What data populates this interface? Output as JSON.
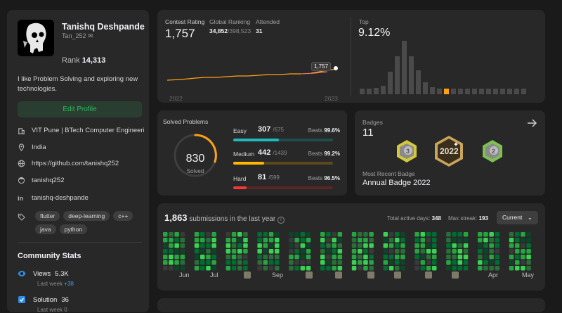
{
  "profile": {
    "name": "Tanishq Deshpande",
    "username": "Tan_252",
    "rank_label": "Rank",
    "rank_value": "14,313",
    "bio": "I like Problem Solving and exploring new technologies.",
    "edit_label": "Edit Profile",
    "college": "VIT Pune | BTech Computer Engineeri...",
    "location": "India",
    "website": "https://github.com/tanishq252",
    "github": "tanishq252",
    "linkedin": "tanishq-deshpande",
    "tags": [
      "flutter",
      "deep-learning",
      "c++",
      "java",
      "python"
    ]
  },
  "community": {
    "title": "Community Stats",
    "views_label": "Views",
    "views_value": "5.3K",
    "views_sub": "Last week",
    "views_delta": "+38",
    "solution_label": "Solution",
    "solution_value": "36",
    "solution_sub": "Last week",
    "solution_delta": "0"
  },
  "contest": {
    "rating_label": "Contest Rating",
    "rating": "1,757",
    "global_label": "Global Ranking",
    "global_rank": "34,852",
    "global_total": "/398,523",
    "attended_label": "Attended",
    "attended": "31",
    "tooltip": "1,757",
    "year_start": "2022",
    "year_end": "2023",
    "top_label": "Top",
    "top_value": "9.12%"
  },
  "solved": {
    "title": "Solved Problems",
    "total": "830",
    "total_label": "Solved",
    "difficulties": [
      {
        "name": "Easy",
        "count": "307",
        "total": "/675",
        "beats_label": "Beats",
        "beats": "99.6%",
        "fraction": 0.455,
        "color": "#1cbaba",
        "track": "#1f4d4a"
      },
      {
        "name": "Medium",
        "count": "442",
        "total": "/1439",
        "beats_label": "Beats",
        "beats": "99.2%",
        "fraction": 0.307,
        "color": "#ffb700",
        "track": "#5c4a1c"
      },
      {
        "name": "Hard",
        "count": "81",
        "total": "/599",
        "beats_label": "Beats",
        "beats": "96.5%",
        "fraction": 0.135,
        "color": "#f63737",
        "track": "#5a2525"
      }
    ]
  },
  "badges": {
    "title": "Badges",
    "count": "11",
    "recent_label": "Most Recent Badge",
    "recent_name": "Annual Badge 2022"
  },
  "submissions": {
    "count": "1,863",
    "text": "submissions in the last year",
    "active_label": "Total active days:",
    "active_value": "348",
    "streak_label": "Max streak:",
    "streak_value": "193",
    "dropdown": "Current",
    "months": [
      "Jun",
      "Jul",
      "",
      "Sep",
      "",
      "",
      "",
      "",
      "",
      "",
      "Apr",
      "May"
    ]
  }
}
